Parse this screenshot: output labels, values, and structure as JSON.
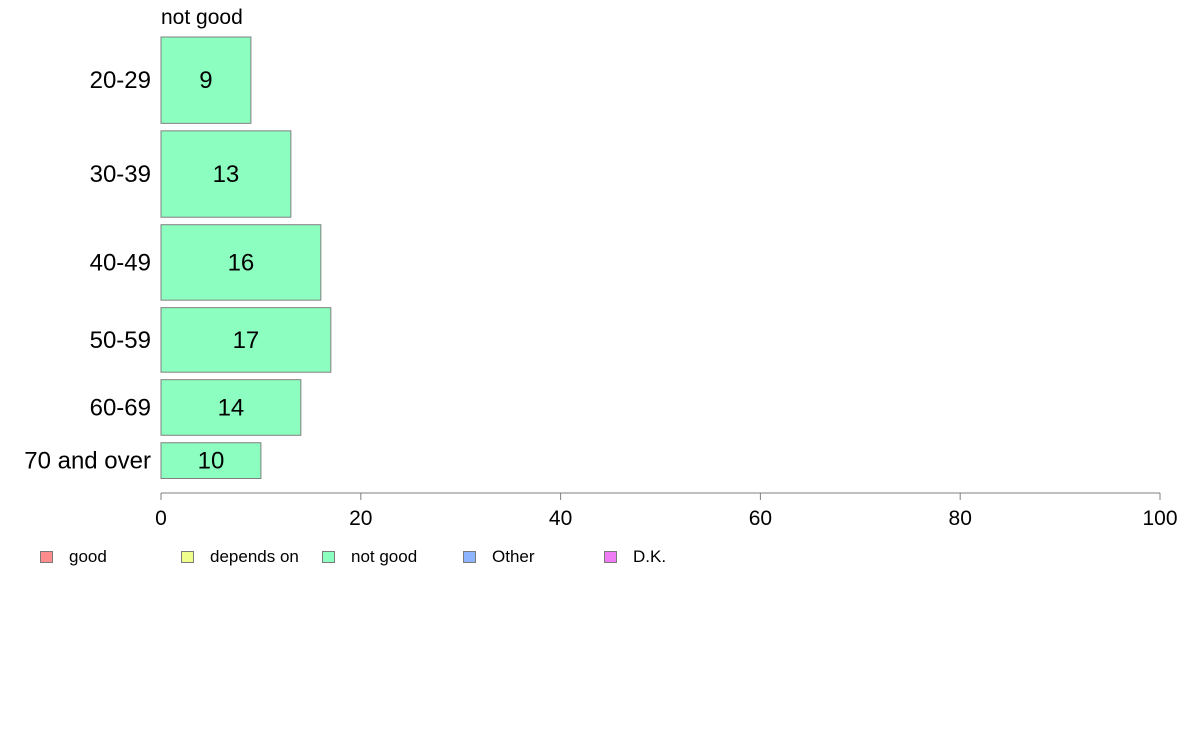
{
  "chart_data": {
    "type": "bar",
    "orientation": "horizontal",
    "stacked": true,
    "title": "not good",
    "categories": [
      "20-29",
      "30-39",
      "40-49",
      "50-59",
      "60-69",
      "70 and over"
    ],
    "series": [
      {
        "name": "not good",
        "color": "#8cffc0",
        "values": [
          9,
          13,
          16,
          17,
          14,
          10
        ],
        "labels": [
          "9",
          "13",
          "16",
          "17",
          "14",
          "10"
        ]
      }
    ],
    "bar_widths_relative": [
      0.87,
      0.87,
      0.76,
      0.65,
      0.56,
      0.36
    ],
    "xlim": [
      0,
      100
    ],
    "xticks": [
      "0",
      "20",
      "40",
      "60",
      "80",
      "100"
    ],
    "xlabel": "",
    "ylabel": "",
    "grid": false,
    "legend_position": "bottom-left"
  },
  "legend": {
    "items": [
      {
        "label": "good",
        "color": "#ff8c8c"
      },
      {
        "label": "depends on",
        "color": "#f0ff8c"
      },
      {
        "label": "not good",
        "color": "#8cffc0"
      },
      {
        "label": "Other",
        "color": "#8cb4ff"
      },
      {
        "label": "D.K.",
        "color": "#f07cf5"
      }
    ]
  }
}
